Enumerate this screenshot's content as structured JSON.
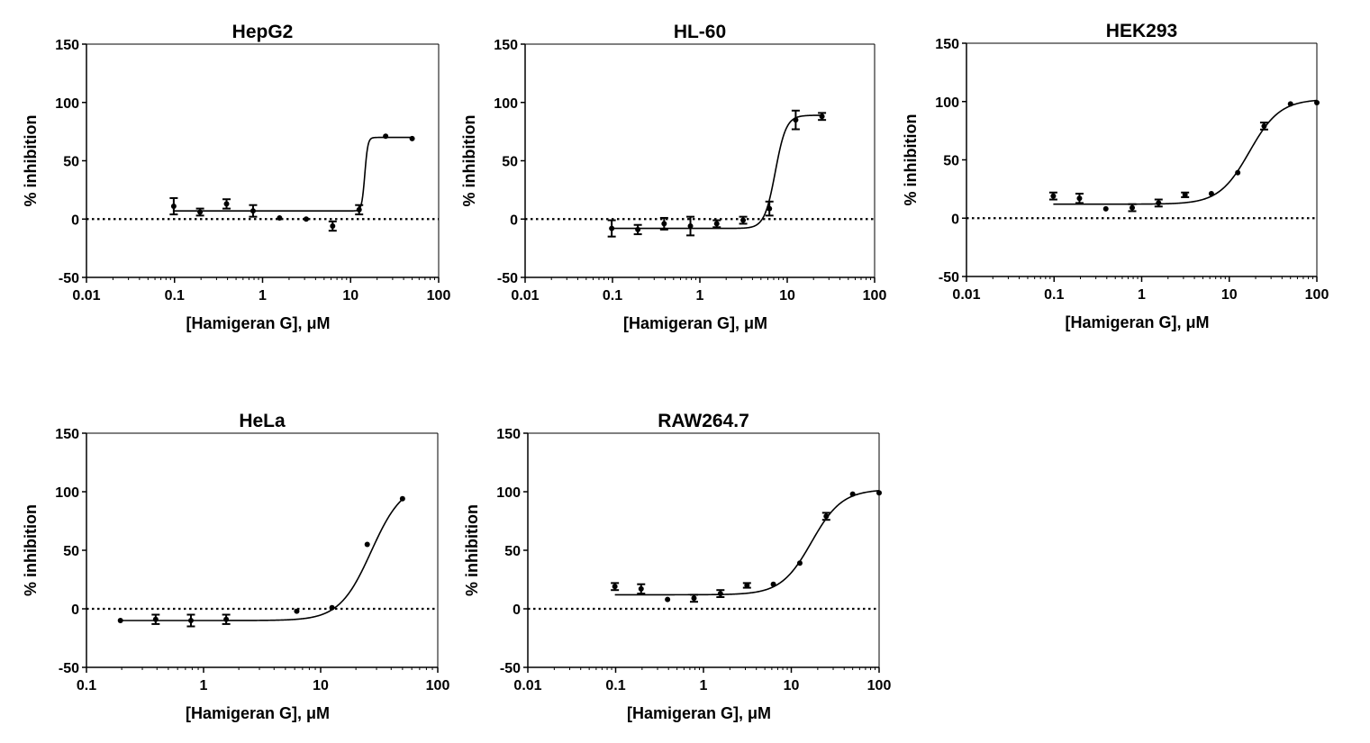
{
  "chart_data": [
    {
      "type": "scatter",
      "title": "HepG2",
      "xlabel": "[Hamigeran G], μM",
      "ylabel": "% inhibition",
      "xscale": "log",
      "xlim": [
        0.01,
        100
      ],
      "ylim": [
        -50,
        150
      ],
      "xticks": [
        "0.01",
        "0.1",
        "1",
        "10",
        "100"
      ],
      "yticks": [
        "-50",
        "0",
        "50",
        "100",
        "150"
      ],
      "reference_line": 0,
      "points": [
        {
          "x": 0.098,
          "y": 11,
          "err": 7
        },
        {
          "x": 0.195,
          "y": 6,
          "err": 3
        },
        {
          "x": 0.39,
          "y": 13,
          "err": 4
        },
        {
          "x": 0.78,
          "y": 7,
          "err": 5
        },
        {
          "x": 1.56,
          "y": 1,
          "err": 0
        },
        {
          "x": 3.13,
          "y": 0,
          "err": 0
        },
        {
          "x": 6.25,
          "y": -6,
          "err": 4
        },
        {
          "x": 12.5,
          "y": 8,
          "err": 4
        },
        {
          "x": 25,
          "y": 71,
          "err": 0
        },
        {
          "x": 50,
          "y": 69,
          "err": 0
        }
      ],
      "fit": {
        "bottom": 7,
        "top": 70,
        "ec50": 14.5,
        "hill": 25,
        "xmin": 0.098,
        "xmax": 50
      }
    },
    {
      "type": "scatter",
      "title": "HL-60",
      "xlabel": "[Hamigeran G], μM",
      "ylabel": "% inhibition",
      "xscale": "log",
      "xlim": [
        0.01,
        100
      ],
      "ylim": [
        -50,
        150
      ],
      "xticks": [
        "0.01",
        "0.1",
        "1",
        "10",
        "100"
      ],
      "yticks": [
        "-50",
        "0",
        "50",
        "100",
        "150"
      ],
      "reference_line": 0,
      "points": [
        {
          "x": 0.098,
          "y": -8,
          "err": 7
        },
        {
          "x": 0.195,
          "y": -9,
          "err": 4
        },
        {
          "x": 0.39,
          "y": -4,
          "err": 5
        },
        {
          "x": 0.78,
          "y": -6,
          "err": 8
        },
        {
          "x": 1.56,
          "y": -4,
          "err": 3
        },
        {
          "x": 3.13,
          "y": -1,
          "err": 3
        },
        {
          "x": 6.25,
          "y": 9,
          "err": 6
        },
        {
          "x": 12.5,
          "y": 85,
          "err": 8
        },
        {
          "x": 25,
          "y": 88,
          "err": 3
        }
      ],
      "fit": {
        "bottom": -8,
        "top": 89,
        "ec50": 7.3,
        "hill": 7,
        "xmin": 0.098,
        "xmax": 25
      }
    },
    {
      "type": "scatter",
      "title": "HEK293",
      "xlabel": "[Hamigeran G], μM",
      "ylabel": "% inhibition",
      "xscale": "log",
      "xlim": [
        0.01,
        100
      ],
      "ylim": [
        -50,
        150
      ],
      "xticks": [
        "0.01",
        "0.1",
        "1",
        "10",
        "100"
      ],
      "yticks": [
        "-50",
        "0",
        "50",
        "100",
        "150"
      ],
      "reference_line": 0,
      "points": [
        {
          "x": 0.098,
          "y": 19,
          "err": 3
        },
        {
          "x": 0.195,
          "y": 17,
          "err": 4
        },
        {
          "x": 0.39,
          "y": 8,
          "err": 0
        },
        {
          "x": 0.78,
          "y": 9,
          "err": 3
        },
        {
          "x": 1.56,
          "y": 13,
          "err": 3
        },
        {
          "x": 3.13,
          "y": 20,
          "err": 2
        },
        {
          "x": 6.25,
          "y": 21,
          "err": 0
        },
        {
          "x": 12.5,
          "y": 39,
          "err": 0
        },
        {
          "x": 25,
          "y": 79,
          "err": 3
        },
        {
          "x": 50,
          "y": 98,
          "err": 0
        },
        {
          "x": 100,
          "y": 99,
          "err": 0
        }
      ],
      "fit": {
        "bottom": 12,
        "top": 102,
        "ec50": 17,
        "hill": 2.5,
        "xmin": 0.098,
        "xmax": 100
      }
    },
    {
      "type": "scatter",
      "title": "HeLa",
      "xlabel": "[Hamigeran G], μM",
      "ylabel": "% inhibition",
      "xscale": "log",
      "xlim": [
        0.1,
        100
      ],
      "ylim": [
        -50,
        150
      ],
      "xticks": [
        "0.1",
        "1",
        "10",
        "100"
      ],
      "yticks": [
        "-50",
        "0",
        "50",
        "100",
        "150"
      ],
      "reference_line": 0,
      "points": [
        {
          "x": 0.195,
          "y": -10,
          "err": 0
        },
        {
          "x": 0.39,
          "y": -9,
          "err": 4
        },
        {
          "x": 0.78,
          "y": -10,
          "err": 5
        },
        {
          "x": 1.56,
          "y": -9,
          "err": 4
        },
        {
          "x": 6.25,
          "y": -2,
          "err": 0
        },
        {
          "x": 12.5,
          "y": 1,
          "err": 0
        },
        {
          "x": 25,
          "y": 55,
          "err": 0
        },
        {
          "x": 50,
          "y": 94,
          "err": 0
        }
      ],
      "fit": {
        "bottom": -10,
        "top": 108,
        "ec50": 27,
        "hill": 3.2,
        "xmin": 0.195,
        "xmax": 50
      }
    },
    {
      "type": "scatter",
      "title": "RAW264.7",
      "xlabel": "[Hamigeran G], μM",
      "ylabel": "% inhibition",
      "xscale": "log",
      "xlim": [
        0.01,
        100
      ],
      "ylim": [
        -50,
        150
      ],
      "xticks": [
        "0.01",
        "0.1",
        "1",
        "10",
        "100"
      ],
      "yticks": [
        "-50",
        "0",
        "50",
        "100",
        "150"
      ],
      "reference_line": 0,
      "points": [
        {
          "x": 0.098,
          "y": 19,
          "err": 3
        },
        {
          "x": 0.195,
          "y": 17,
          "err": 4
        },
        {
          "x": 0.39,
          "y": 8,
          "err": 0
        },
        {
          "x": 0.78,
          "y": 9,
          "err": 3
        },
        {
          "x": 1.56,
          "y": 13,
          "err": 3
        },
        {
          "x": 3.13,
          "y": 20,
          "err": 2
        },
        {
          "x": 6.25,
          "y": 21,
          "err": 0
        },
        {
          "x": 12.5,
          "y": 39,
          "err": 0
        },
        {
          "x": 25,
          "y": 79,
          "err": 3
        },
        {
          "x": 50,
          "y": 98,
          "err": 0
        },
        {
          "x": 100,
          "y": 99,
          "err": 0
        }
      ],
      "fit": {
        "bottom": 12,
        "top": 102,
        "ec50": 17,
        "hill": 2.5,
        "xmin": 0.098,
        "xmax": 100
      }
    }
  ]
}
